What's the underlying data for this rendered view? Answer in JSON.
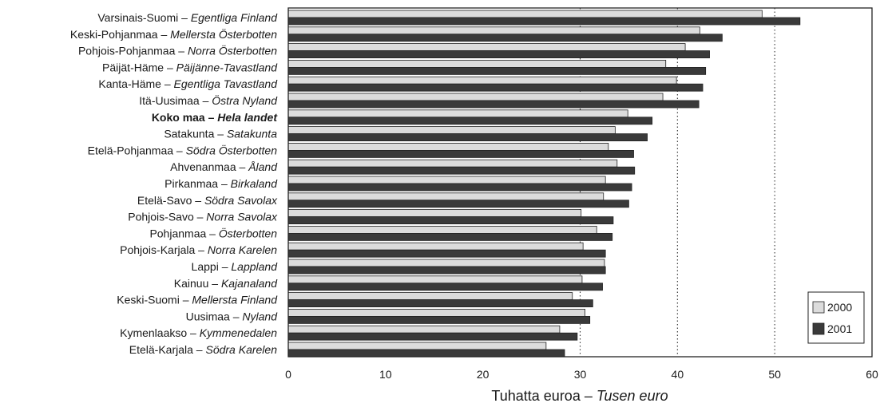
{
  "chart_data": {
    "type": "bar",
    "orientation": "horizontal",
    "categories": [
      {
        "name": "Varsinais-Suomi",
        "alt": "Egentliga Finland",
        "bold": false
      },
      {
        "name": "Keski-Pohjanmaa",
        "alt": "Mellersta Österbotten",
        "bold": false
      },
      {
        "name": "Pohjois-Pohjanmaa",
        "alt": "Norra Österbotten",
        "bold": false
      },
      {
        "name": "Päijät-Häme",
        "alt": "Päijänne-Tavastland",
        "bold": false
      },
      {
        "name": "Kanta-Häme",
        "alt": "Egentliga Tavastland",
        "bold": false
      },
      {
        "name": "Itä-Uusimaa",
        "alt": "Östra Nyland",
        "bold": false
      },
      {
        "name": "Koko maa",
        "alt": "Hela landet",
        "bold": true
      },
      {
        "name": "Satakunta",
        "alt": "Satakunta",
        "bold": false
      },
      {
        "name": "Etelä-Pohjanmaa",
        "alt": "Södra Österbotten",
        "bold": false
      },
      {
        "name": "Ahvenanmaa",
        "alt": "Åland",
        "bold": false
      },
      {
        "name": "Pirkanmaa",
        "alt": "Birkaland",
        "bold": false
      },
      {
        "name": "Etelä-Savo",
        "alt": "Södra Savolax",
        "bold": false
      },
      {
        "name": "Pohjois-Savo",
        "alt": "Norra Savolax",
        "bold": false
      },
      {
        "name": "Pohjanmaa",
        "alt": "Österbotten",
        "bold": false
      },
      {
        "name": "Pohjois-Karjala",
        "alt": "Norra Karelen",
        "bold": false
      },
      {
        "name": "Lappi",
        "alt": "Lappland",
        "bold": false
      },
      {
        "name": "Kainuu",
        "alt": "Kajanaland",
        "bold": false
      },
      {
        "name": "Keski-Suomi",
        "alt": "Mellersta Finland",
        "bold": false
      },
      {
        "name": "Uusimaa",
        "alt": "Nyland",
        "bold": false
      },
      {
        "name": "Kymenlaakso",
        "alt": "Kymmenedalen",
        "bold": false
      },
      {
        "name": "Etelä-Karjala",
        "alt": "Södra Karelen",
        "bold": false
      }
    ],
    "series": [
      {
        "name": "2000",
        "color": "#dcdcdc",
        "values": [
          48.7,
          42.3,
          40.8,
          38.8,
          39.9,
          38.5,
          34.9,
          33.6,
          32.9,
          33.8,
          32.6,
          32.4,
          30.1,
          31.7,
          30.3,
          32.5,
          30.2,
          29.2,
          30.5,
          27.9,
          26.5
        ]
      },
      {
        "name": "2001",
        "color": "#3a3a3a",
        "values": [
          52.6,
          44.6,
          43.3,
          42.9,
          42.6,
          42.2,
          37.4,
          36.9,
          35.5,
          35.6,
          35.3,
          35.0,
          33.4,
          33.3,
          32.6,
          32.6,
          32.3,
          31.3,
          31.0,
          29.7,
          28.4
        ]
      }
    ],
    "xlim": [
      0,
      60
    ],
    "xticks": [
      0,
      10,
      20,
      30,
      40,
      50,
      60
    ],
    "gridlines": [
      30,
      40,
      50
    ],
    "xlabel": {
      "main": "Tuhatta euroa",
      "alt": "Tusen euro"
    },
    "legend_position": "bottom-right"
  }
}
